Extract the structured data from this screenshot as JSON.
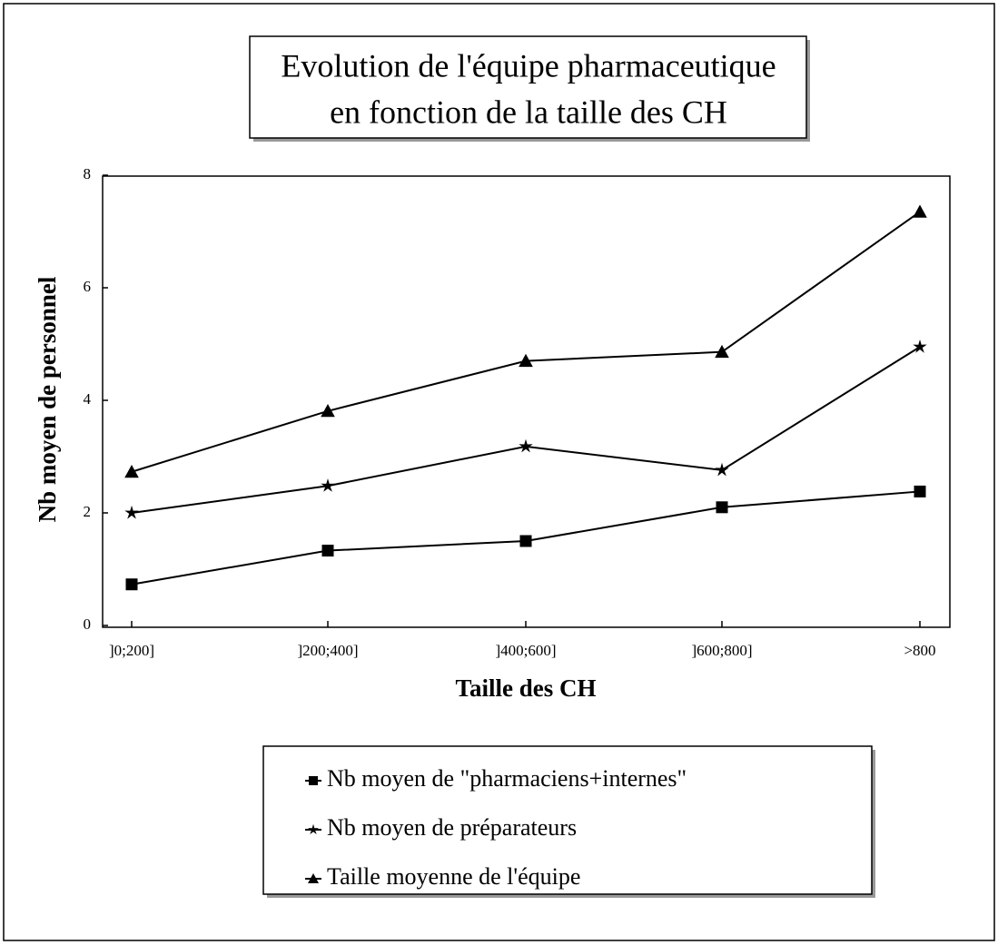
{
  "chart_data": {
    "type": "line",
    "title": [
      "Evolution de l'équipe pharmaceutique",
      "en fonction de la taille des CH"
    ],
    "x_label": "Taille des CH",
    "y_label": "Nb moyen de personnel",
    "categories": [
      "]0;200]",
      "]200;400]",
      "]400;600]",
      "]600;800]",
      ">800"
    ],
    "series": [
      {
        "name": "Nb moyen de \"pharmaciens+internes\"",
        "color": "#000000",
        "marker": "square",
        "values": [
          0.73,
          1.33,
          1.5,
          2.1,
          2.38
        ]
      },
      {
        "name": "Nb moyen de préparateurs",
        "color": "#000000",
        "marker": "star",
        "values": [
          2.0,
          2.48,
          3.18,
          2.76,
          4.95
        ]
      },
      {
        "name": "Taille moyenne de l'équipe",
        "color": "#000000",
        "marker": "triangle",
        "values": [
          2.73,
          3.81,
          4.7,
          4.86,
          7.35
        ]
      }
    ],
    "ylim": [
      0,
      8
    ],
    "yticks": [
      0,
      2,
      4,
      6,
      8
    ],
    "grid": false
  }
}
